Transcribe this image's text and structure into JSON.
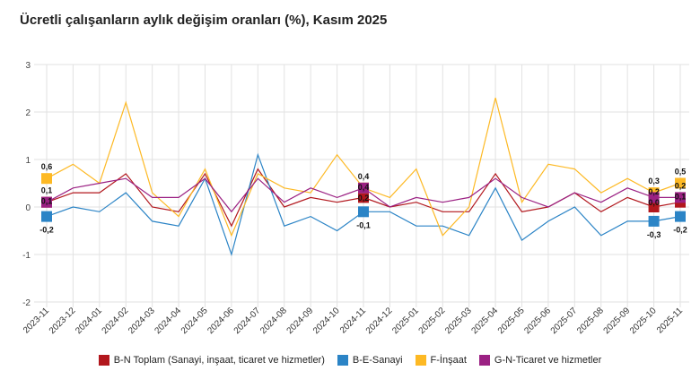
{
  "chart_data": {
    "type": "line",
    "title": "Ücretli çalışanların aylık değişim oranları (%), Kasım 2025",
    "xlabel": "",
    "ylabel": "",
    "ylim": [
      -2,
      3
    ],
    "yticks": [
      "3",
      "2",
      "1",
      "0",
      "-1",
      "-2"
    ],
    "grid": true,
    "legend_position": "bottom",
    "categories": [
      "2023-11",
      "2023-12",
      "2024-01",
      "2024-02",
      "2024-03",
      "2024-04",
      "2024-05",
      "2024-06",
      "2024-07",
      "2024-08",
      "2024-09",
      "2024-10",
      "2024-11",
      "2024-12",
      "2025-01",
      "2025-02",
      "2025-03",
      "2025-04",
      "2025-05",
      "2025-06",
      "2025-07",
      "2025-08",
      "2025-09",
      "2025-10",
      "2025-11"
    ],
    "labeled_points": [
      "2023-11",
      "2024-11",
      "2025-10",
      "2025-11"
    ],
    "series": [
      {
        "name": "B-N Toplam (Sanayi, inşaat, ticaret ve hizmetler)",
        "color": "#b2171d",
        "values": [
          0.1,
          0.3,
          0.3,
          0.7,
          0.0,
          -0.1,
          0.7,
          -0.4,
          0.8,
          0.0,
          0.2,
          0.1,
          0.2,
          0.0,
          0.1,
          -0.1,
          -0.1,
          0.7,
          -0.1,
          0.0,
          0.3,
          -0.1,
          0.2,
          0.0,
          0.1
        ]
      },
      {
        "name": "B-E-Sanayi",
        "color": "#2b84c6",
        "values": [
          -0.2,
          0.0,
          -0.1,
          0.3,
          -0.3,
          -0.4,
          0.6,
          -1.0,
          1.1,
          -0.4,
          -0.2,
          -0.5,
          -0.1,
          -0.1,
          -0.4,
          -0.4,
          -0.6,
          0.4,
          -0.7,
          -0.3,
          0.0,
          -0.6,
          -0.3,
          -0.3,
          -0.2
        ]
      },
      {
        "name": "F-İnşaat",
        "color": "#fdb924",
        "values": [
          0.6,
          0.9,
          0.5,
          2.2,
          0.3,
          -0.2,
          0.8,
          -0.6,
          0.7,
          0.4,
          0.3,
          1.1,
          0.4,
          0.2,
          0.8,
          -0.6,
          0.0,
          2.3,
          0.1,
          0.9,
          0.8,
          0.3,
          0.6,
          0.3,
          0.5
        ]
      },
      {
        "name": "G-N-Ticaret ve hizmetler",
        "color": "#9b2183",
        "values": [
          0.1,
          0.4,
          0.5,
          0.6,
          0.2,
          0.2,
          0.6,
          -0.1,
          0.6,
          0.1,
          0.4,
          0.2,
          0.4,
          0.0,
          0.2,
          0.1,
          0.2,
          0.6,
          0.2,
          0.0,
          0.3,
          0.1,
          0.4,
          0.2,
          0.2
        ]
      }
    ]
  }
}
